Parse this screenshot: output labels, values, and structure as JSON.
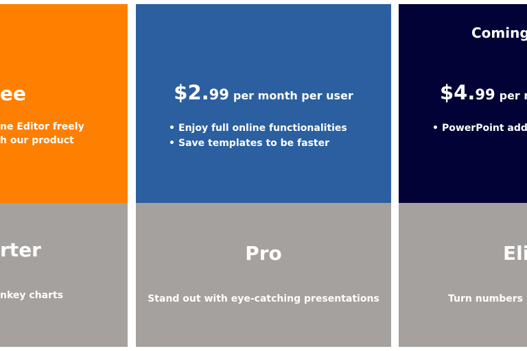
{
  "cards": [
    {
      "title": "ee",
      "features": [
        "ne Editor freely",
        "h our product"
      ],
      "plan": "rter",
      "tagline": "nkey charts"
    },
    {
      "price_main": "$2.",
      "price_cents": "99",
      "period": "per month per user",
      "features": [
        "Enjoy full online functionalities",
        "Save templates to be faster"
      ],
      "plan": "Pro",
      "tagline": "Stand out with eye-catching presentations"
    },
    {
      "badge": "Coming",
      "price_main": "$4.",
      "price_cents": "99",
      "period": "per m",
      "features": [
        "PowerPoint add"
      ],
      "plan": "Eli",
      "tagline": "Turn numbers"
    }
  ]
}
